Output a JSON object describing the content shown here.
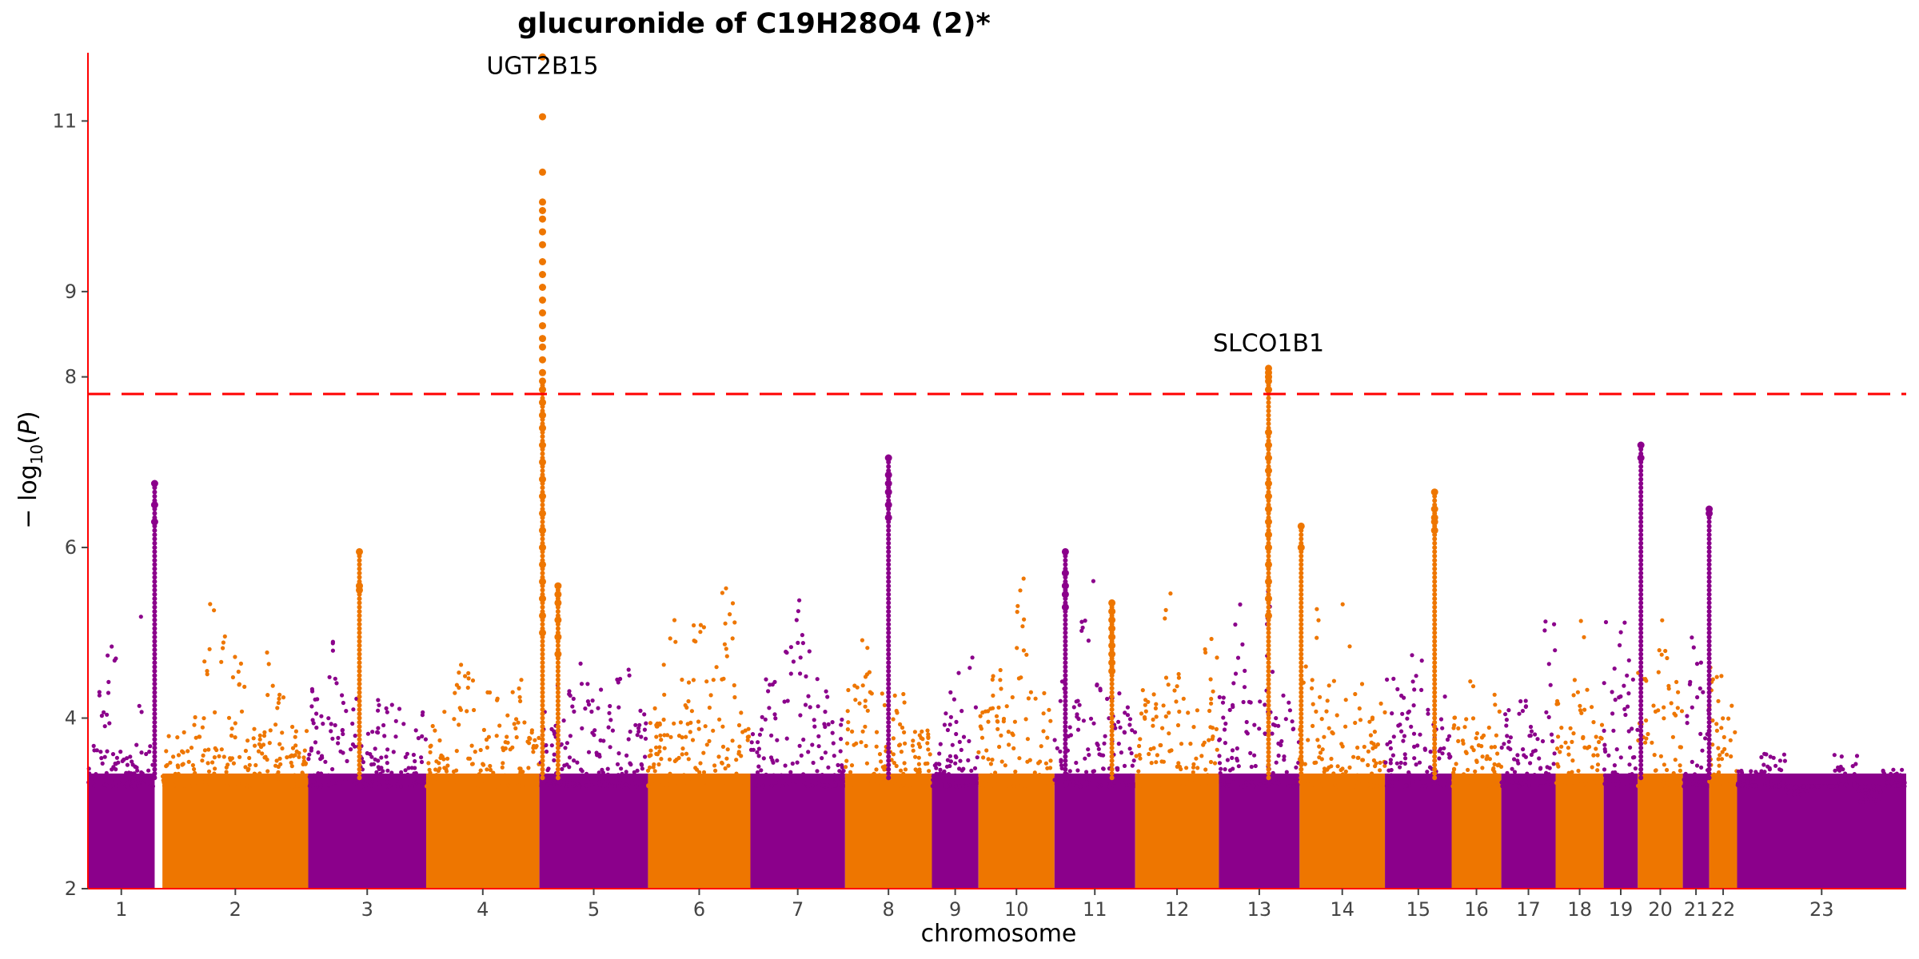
{
  "chart_data": {
    "type": "scatter",
    "title": "glucuronide of C19H28O4 (2)*",
    "xlabel": "chromosome",
    "ylabel": "-log10(P)",
    "ylim": [
      2,
      11.8
    ],
    "yticks": [
      2,
      4,
      6,
      8,
      9,
      11
    ],
    "colors": {
      "odd": "#8B008B",
      "even": "#EE7600",
      "threshold": "#FF0000",
      "axis": "#FF0000"
    },
    "significance_threshold": 7.8,
    "chromosomes": [
      {
        "label": "1",
        "start": 0,
        "end": 43
      },
      {
        "label": "2",
        "start": 48,
        "end": 142
      },
      {
        "label": "3",
        "start": 142,
        "end": 218
      },
      {
        "label": "4",
        "start": 218,
        "end": 291
      },
      {
        "label": "5",
        "start": 291,
        "end": 361
      },
      {
        "label": "6",
        "start": 361,
        "end": 427
      },
      {
        "label": "7",
        "start": 427,
        "end": 488
      },
      {
        "label": "8",
        "start": 488,
        "end": 544
      },
      {
        "label": "9",
        "start": 544,
        "end": 574
      },
      {
        "label": "10",
        "start": 574,
        "end": 623
      },
      {
        "label": "11",
        "start": 623,
        "end": 675
      },
      {
        "label": "12",
        "start": 675,
        "end": 729
      },
      {
        "label": "13",
        "start": 729,
        "end": 781
      },
      {
        "label": "14",
        "start": 781,
        "end": 836
      },
      {
        "label": "15",
        "start": 836,
        "end": 879
      },
      {
        "label": "16",
        "start": 879,
        "end": 911
      },
      {
        "label": "17",
        "start": 911,
        "end": 946
      },
      {
        "label": "18",
        "start": 946,
        "end": 977
      },
      {
        "label": "19",
        "start": 977,
        "end": 999
      },
      {
        "label": "20",
        "start": 999,
        "end": 1028
      },
      {
        "label": "21",
        "start": 1028,
        "end": 1045
      },
      {
        "label": "22",
        "start": 1045,
        "end": 1063
      },
      {
        "label": "23",
        "start": 1063,
        "end": 1172
      }
    ],
    "annotations": [
      {
        "label": "UGT2B15",
        "x": 293,
        "y": 11.55
      },
      {
        "label": "SLCO1B1",
        "x": 761,
        "y": 8.3
      }
    ],
    "peaks": [
      {
        "chromosome": "4",
        "x": 293,
        "values": [
          11.75,
          11.05,
          10.4,
          10.05,
          9.95,
          9.85,
          9.7,
          9.55,
          9.35,
          9.2,
          9.05,
          8.9,
          8.75,
          8.6,
          8.45,
          8.35,
          8.2,
          8.05,
          7.95,
          7.85,
          7.7,
          7.55,
          7.4,
          7.2,
          7.0,
          6.8,
          6.6,
          6.4,
          6.2,
          6.0,
          5.8,
          5.6,
          5.4,
          5.2,
          5.0
        ]
      },
      {
        "chromosome": "12",
        "x": 761,
        "values": [
          8.1,
          8.05,
          8.0,
          7.95,
          7.85,
          7.35,
          7.2,
          7.05,
          6.9,
          6.75,
          6.6,
          6.45,
          6.3,
          6.15,
          6.0,
          5.8,
          5.6,
          5.4,
          5.2
        ]
      },
      {
        "chromosome": "7",
        "x": 516,
        "values": [
          7.05,
          6.85,
          6.75,
          6.65,
          6.5,
          6.35
        ]
      },
      {
        "chromosome": "17",
        "x": 1001,
        "values": [
          7.2,
          7.05
        ]
      },
      {
        "chromosome": "1",
        "x": 43,
        "values": [
          6.75,
          6.5,
          6.3
        ]
      },
      {
        "chromosome": "14",
        "x": 868,
        "values": [
          6.65,
          6.45,
          6.35,
          6.3,
          6.2
        ]
      },
      {
        "chromosome": "19",
        "x": 1045,
        "values": [
          6.45,
          6.4
        ]
      },
      {
        "chromosome": "12",
        "x": 782,
        "values": [
          6.25,
          6.0
        ]
      },
      {
        "chromosome": "2",
        "x": 175,
        "values": [
          5.95,
          5.55,
          5.5
        ]
      },
      {
        "chromosome": "9",
        "x": 630,
        "values": [
          5.95,
          5.7,
          5.55,
          5.45,
          5.3
        ]
      },
      {
        "chromosome": "10",
        "x": 660,
        "values": [
          5.35,
          5.25,
          5.15,
          5.05,
          4.95,
          4.85,
          4.75,
          4.65,
          4.55
        ]
      },
      {
        "chromosome": "4",
        "x": 303,
        "values": [
          5.55,
          5.45,
          5.35,
          5.15,
          4.95,
          4.75
        ]
      }
    ],
    "background_levels": [
      [
        3.75,
        4.6,
        4.9,
        3.65,
        3.55,
        5.2,
        3.75
      ],
      [
        3.8,
        4.2,
        5.45,
        4.75,
        3.9,
        4.8,
        3.9
      ],
      [
        4.55,
        5.0,
        4.45,
        4.1,
        4.3,
        4.2,
        4.15
      ],
      [
        4.0,
        4.4,
        4.8,
        4.6,
        4.3,
        4.5,
        4.1
      ],
      [
        4.1,
        4.4,
        4.85,
        4.5,
        4.3,
        4.6,
        4.2
      ],
      [
        4.2,
        5.45,
        4.9,
        5.1,
        4.6,
        5.55,
        4.2
      ],
      [
        4.05,
        4.5,
        4.9,
        5.4,
        5.3,
        4.5,
        4.0
      ],
      [
        4.6,
        4.95,
        4.4,
        4.2,
        4.35,
        4.1,
        3.9
      ],
      [
        3.7,
        4.4,
        4.6,
        4.1,
        5.05
      ],
      [
        4.2,
        4.6,
        4.4,
        5.8,
        4.4,
        4.3
      ],
      [
        4.5,
        4.4,
        5.85,
        4.4,
        4.3,
        4.2
      ],
      [
        4.4,
        4.3,
        5.55,
        4.6,
        4.2,
        4.95
      ],
      [
        4.6,
        5.35,
        4.8,
        5.55,
        4.4,
        4.3
      ],
      [
        4.7,
        5.45,
        4.5,
        5.35,
        4.4,
        4.2
      ],
      [
        4.75,
        4.3,
        4.95,
        4.2,
        4.4
      ],
      [
        4.3,
        4.6,
        3.9,
        4.3
      ],
      [
        4.1,
        4.3,
        3.9,
        5.3
      ],
      [
        4.2,
        4.45,
        5.15,
        4.3
      ],
      [
        5.25,
        5.15,
        4.8
      ],
      [
        4.7,
        5.2,
        4.6
      ],
      [
        4.95,
        4.7
      ],
      [
        4.6,
        5.0,
        4.2
      ],
      [
        3.4,
        3.6,
        3.1,
        3.2,
        3.6,
        3.0,
        3.4
      ]
    ]
  }
}
